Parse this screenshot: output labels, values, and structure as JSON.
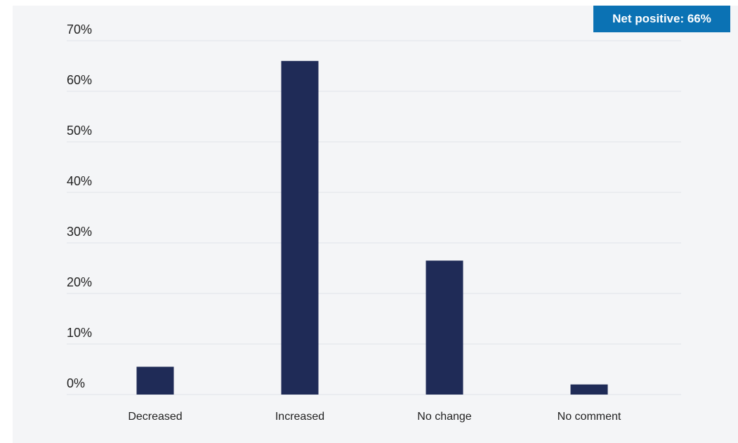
{
  "badge": {
    "text": "Net positive: 66%"
  },
  "colors": {
    "bar": "#1f2b57",
    "badge": "#0b72b4",
    "grid": "#dfe2e8",
    "panel": "#f4f5f7"
  },
  "chart_data": {
    "type": "bar",
    "categories": [
      "Decreased",
      "Increased",
      "No change",
      "No comment"
    ],
    "values": [
      5.5,
      66,
      26.5,
      2
    ],
    "ylim": [
      0,
      70
    ],
    "yticks": [
      0,
      10,
      20,
      30,
      40,
      50,
      60,
      70
    ],
    "ytick_labels": [
      "0%",
      "10%",
      "20%",
      "30%",
      "40%",
      "50%",
      "60%",
      "70%"
    ],
    "grid": true,
    "legend": "none"
  }
}
